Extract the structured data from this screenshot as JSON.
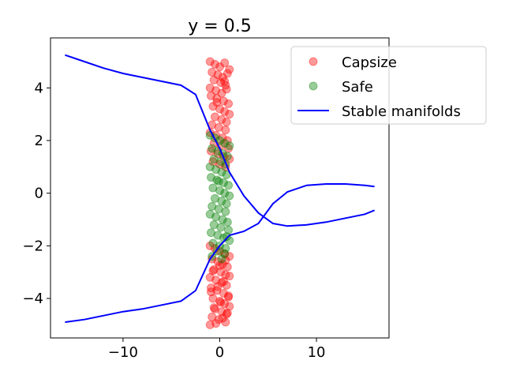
{
  "chart_data": {
    "type": "scatter",
    "title": "y = 0.5",
    "xlabel": "",
    "ylabel": "",
    "xlim": [
      -17.5,
      17.5
    ],
    "ylim": [
      -5.5,
      5.9
    ],
    "xticks": [
      -10,
      0,
      10
    ],
    "xtick_labels": [
      "−10",
      "0",
      "10"
    ],
    "yticks": [
      -4,
      -2,
      0,
      2,
      4
    ],
    "ytick_labels": [
      "−4",
      "−2",
      "0",
      "2",
      "4"
    ],
    "grid": false,
    "legend_position": "top-right",
    "colors": {
      "capsize": "#ff0000",
      "safe": "#008000",
      "manifold": "#0000ff"
    },
    "series": [
      {
        "name": "Capsize",
        "kind": "scatter",
        "x": [
          -1.0,
          -0.5,
          0.0,
          0.5,
          1.0,
          -0.8,
          -0.2,
          0.3,
          0.8,
          -0.6,
          0.1,
          0.6,
          -1.0,
          -0.4,
          0.2,
          0.7,
          -0.9,
          -0.3,
          0.4,
          0.9,
          -0.7,
          0.0,
          0.5,
          1.0,
          -0.5,
          0.2,
          0.7,
          -0.8,
          -0.1,
          0.6,
          -1.0,
          -0.4,
          0.3,
          0.8,
          -0.6,
          0.1,
          0.9,
          -0.9,
          -0.2,
          0.4,
          1.0,
          -0.7,
          0.0,
          0.6,
          -0.3,
          0.5,
          -1.0,
          -0.5,
          0.0,
          0.5,
          1.0,
          -0.8,
          -0.2,
          0.3,
          0.8,
          -0.6,
          0.1,
          0.6,
          -1.0,
          -0.4,
          0.2,
          0.7,
          -0.9,
          -0.3,
          0.4,
          0.9,
          -0.7,
          0.0,
          0.5,
          1.0,
          -0.5,
          0.2,
          0.7,
          -0.8,
          -0.1,
          0.6,
          -1.0,
          -0.4,
          0.3,
          0.8,
          -0.6,
          0.1,
          0.9,
          -0.9,
          -0.2,
          0.4,
          1.0,
          -0.7,
          0.0,
          0.6
        ],
        "y": [
          5.0,
          4.9,
          4.8,
          4.95,
          4.7,
          4.6,
          4.5,
          4.4,
          4.55,
          4.3,
          4.2,
          4.1,
          4.0,
          3.9,
          3.8,
          3.95,
          3.7,
          3.6,
          3.5,
          3.4,
          3.3,
          3.2,
          3.1,
          3.0,
          2.9,
          2.8,
          2.7,
          2.6,
          2.5,
          2.4,
          2.3,
          2.2,
          2.1,
          2.0,
          1.9,
          1.8,
          1.7,
          1.6,
          1.5,
          1.4,
          1.3,
          1.2,
          1.1,
          1.0,
          3.45,
          4.25,
          -2.0,
          -2.1,
          -2.2,
          -2.3,
          -2.4,
          -2.5,
          -2.6,
          -2.7,
          -2.8,
          -2.9,
          -3.0,
          -3.1,
          -3.2,
          -3.3,
          -3.4,
          -3.5,
          -3.6,
          -3.7,
          -3.8,
          -3.9,
          -4.0,
          -4.1,
          -4.2,
          -4.3,
          -4.4,
          -4.5,
          -4.6,
          -4.7,
          -4.8,
          -4.9,
          -5.0,
          -4.95,
          -4.75,
          -4.55,
          -4.35,
          -4.15,
          -3.95,
          -3.75,
          -3.55,
          -3.35,
          -3.15,
          -2.95,
          -2.75,
          -2.55
        ]
      },
      {
        "name": "Safe",
        "kind": "scatter",
        "x": [
          -1.0,
          -0.5,
          0.0,
          0.5,
          1.0,
          -0.8,
          -0.2,
          0.3,
          0.8,
          -0.6,
          0.1,
          0.6,
          -1.0,
          -0.4,
          0.2,
          0.7,
          -0.9,
          -0.3,
          0.4,
          0.9,
          -0.7,
          0.0,
          0.5,
          1.0,
          -0.5,
          0.2,
          0.7,
          -0.8,
          -0.1,
          0.6,
          -1.0,
          -0.4,
          0.3,
          0.8,
          -0.6,
          0.1,
          0.9,
          -0.9,
          -0.2,
          0.4,
          1.0,
          -0.7,
          0.0,
          0.6,
          -0.3,
          0.5,
          -0.8,
          0.2,
          0.7,
          -0.1
        ],
        "y": [
          2.2,
          2.1,
          2.0,
          1.9,
          1.8,
          1.7,
          1.6,
          1.5,
          1.4,
          1.3,
          1.2,
          1.1,
          1.0,
          0.9,
          0.8,
          0.7,
          0.6,
          0.5,
          0.4,
          0.3,
          0.2,
          0.1,
          0.0,
          -0.1,
          -0.2,
          -0.3,
          -0.4,
          -0.5,
          -0.6,
          -0.7,
          -0.8,
          -0.9,
          -1.0,
          -1.1,
          -1.2,
          -1.3,
          -1.4,
          -1.5,
          -1.6,
          -1.7,
          -1.8,
          -1.9,
          -2.0,
          -2.1,
          -2.2,
          -2.3,
          -2.4,
          -2.5,
          -1.65,
          0.45
        ]
      },
      {
        "name": "Stable manifolds",
        "kind": "line",
        "x": [
          -16,
          -14,
          -12,
          -10,
          -8,
          -6,
          -4,
          -2.5,
          -1,
          0,
          1,
          2.5,
          4,
          5.5,
          7,
          9,
          11,
          13,
          15,
          16
        ],
        "y": [
          -4.9,
          -4.8,
          -4.65,
          -4.5,
          -4.4,
          -4.25,
          -4.1,
          -3.7,
          -2.5,
          -2.0,
          -1.6,
          -1.45,
          -1.15,
          -0.4,
          0.05,
          0.3,
          0.35,
          0.35,
          0.3,
          0.25
        ]
      },
      {
        "name": "",
        "kind": "line",
        "x": [
          -16,
          -14,
          -12,
          -10,
          -8,
          -6,
          -4,
          -2.5,
          -1,
          0,
          1,
          2.5,
          4,
          5.5,
          7,
          9,
          11,
          13,
          15,
          16
        ],
        "y": [
          5.25,
          5.0,
          4.75,
          4.55,
          4.4,
          4.25,
          4.1,
          3.75,
          2.4,
          1.7,
          0.8,
          -0.1,
          -0.75,
          -1.15,
          -1.25,
          -1.2,
          -1.1,
          -0.95,
          -0.8,
          -0.65
        ]
      }
    ],
    "legend": [
      {
        "label": "Capsize",
        "kind": "marker",
        "color": "#ff0000"
      },
      {
        "label": "Safe",
        "kind": "marker",
        "color": "#008000"
      },
      {
        "label": "Stable manifolds",
        "kind": "line",
        "color": "#0000ff"
      }
    ]
  }
}
